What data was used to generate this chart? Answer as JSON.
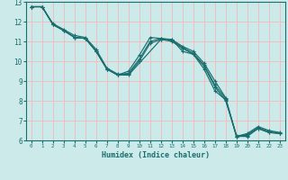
{
  "xlabel": "Humidex (Indice chaleur)",
  "bg_color": "#cceaea",
  "grid_color": "#f5b8b8",
  "line_color": "#1a6e6e",
  "xlim": [
    -0.5,
    23.5
  ],
  "ylim": [
    6,
    13
  ],
  "xticks": [
    0,
    1,
    2,
    3,
    4,
    5,
    6,
    7,
    8,
    9,
    10,
    11,
    12,
    13,
    14,
    15,
    16,
    17,
    18,
    19,
    20,
    21,
    22,
    23
  ],
  "yticks": [
    6,
    7,
    8,
    9,
    10,
    11,
    12,
    13
  ],
  "series": [
    {
      "x": [
        0,
        1,
        2,
        3,
        4,
        5,
        6,
        7,
        8,
        9,
        10,
        11,
        12,
        13,
        14,
        15,
        16,
        17,
        18,
        19,
        20,
        21,
        22,
        23
      ],
      "y": [
        12.75,
        12.75,
        11.85,
        11.55,
        11.2,
        11.15,
        10.5,
        9.6,
        9.3,
        9.5,
        10.3,
        11.2,
        11.15,
        11.1,
        10.75,
        10.5,
        9.9,
        9.0,
        8.15,
        6.2,
        6.35,
        6.7,
        6.5,
        6.4
      ]
    },
    {
      "x": [
        0,
        1,
        2,
        3,
        4,
        5,
        6,
        7,
        8,
        9,
        10,
        11,
        12,
        13,
        14,
        15,
        16,
        17,
        18,
        19,
        20,
        21,
        22,
        23
      ],
      "y": [
        12.75,
        12.75,
        11.85,
        11.55,
        11.2,
        11.15,
        10.5,
        9.6,
        9.3,
        9.4,
        10.1,
        11.0,
        11.15,
        11.05,
        10.7,
        10.4,
        9.8,
        8.8,
        8.1,
        6.2,
        6.3,
        6.65,
        6.45,
        6.35
      ]
    },
    {
      "x": [
        0,
        1,
        2,
        3,
        4,
        5,
        6,
        7,
        8,
        9,
        10,
        11,
        12,
        13,
        14,
        15,
        16,
        17,
        18,
        19,
        20,
        21,
        22,
        23
      ],
      "y": [
        12.75,
        12.75,
        11.9,
        11.6,
        11.3,
        11.2,
        10.6,
        9.65,
        9.35,
        9.35,
        10.0,
        10.9,
        11.1,
        11.0,
        10.65,
        10.35,
        9.75,
        8.7,
        8.0,
        6.25,
        6.25,
        6.6,
        6.4,
        6.35
      ]
    },
    {
      "x": [
        0,
        1,
        2,
        3,
        4,
        5,
        6,
        7,
        8,
        9,
        12,
        13,
        14,
        15,
        16,
        17,
        18,
        19,
        20,
        21,
        22,
        23
      ],
      "y": [
        12.75,
        12.75,
        11.85,
        11.55,
        11.2,
        11.15,
        10.5,
        9.6,
        9.3,
        9.3,
        11.1,
        11.1,
        10.5,
        10.35,
        9.6,
        8.5,
        8.05,
        6.2,
        6.2,
        6.6,
        6.4,
        6.35
      ]
    }
  ]
}
